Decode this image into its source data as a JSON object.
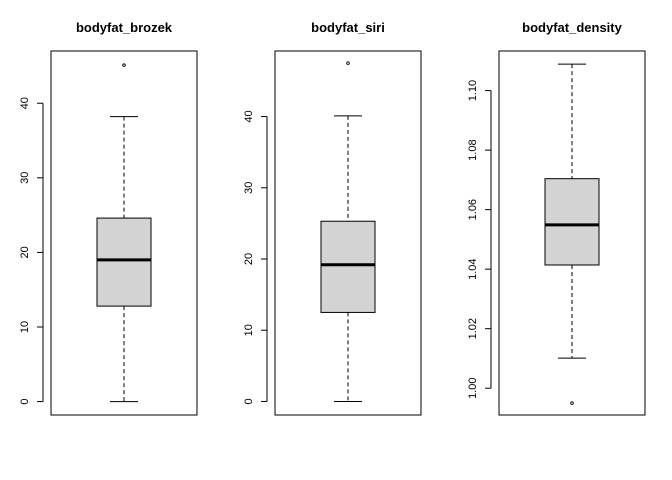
{
  "chart_data": [
    {
      "type": "boxplot",
      "title": "bodyfat_brozek",
      "yticks": [
        0,
        10,
        20,
        30,
        40
      ],
      "ylim": [
        -1.8,
        47.0
      ],
      "box": {
        "min": 0.0,
        "q1": 12.8,
        "median": 19.0,
        "q3": 24.6,
        "max": 38.2
      },
      "outliers": [
        45.1
      ]
    },
    {
      "type": "boxplot",
      "title": "bodyfat_siri",
      "yticks": [
        0,
        10,
        20,
        30,
        40
      ],
      "ylim": [
        -1.9,
        49.2
      ],
      "box": {
        "min": 0.0,
        "q1": 12.5,
        "median": 19.2,
        "q3": 25.3,
        "max": 40.1
      },
      "outliers": [
        47.5
      ]
    },
    {
      "type": "boxplot",
      "title": "bodyfat_density",
      "yticks": [
        "1.00",
        "1.02",
        "1.04",
        "1.06",
        "1.08",
        "1.10"
      ],
      "ylim": [
        0.991,
        1.1133
      ],
      "box": {
        "min": 1.0101,
        "q1": 1.0414,
        "median": 1.0549,
        "q3": 1.0704,
        "max": 1.1089
      },
      "outliers": [
        0.995
      ]
    }
  ],
  "style": {
    "box_fill": "#d3d3d3",
    "stroke": "#000000"
  }
}
